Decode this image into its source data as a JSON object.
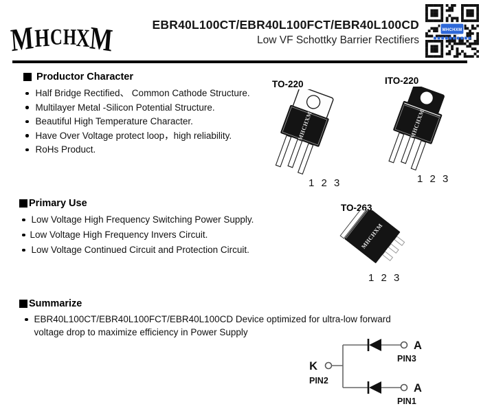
{
  "header": {
    "logo_letters": [
      "M",
      "H",
      "C",
      "H",
      "X",
      "M"
    ],
    "title": "EBR40L100CT/EBR40L100FCT/EBR40L100CD",
    "subtitle": "Low VF Schottky Barrier Rectifiers",
    "qr": {
      "badge_text": "MHCHXM"
    }
  },
  "sections": {
    "productor": {
      "title": "Productor Character",
      "bullets": [
        "Half Bridge Rectified、 Common Cathode Structure.",
        "Multilayer Metal -Silicon Potential Structure.",
        "Beautiful High Temperature Character.",
        "Have Over Voltage protect loop，high  reliability.",
        "RoHs Product."
      ]
    },
    "primary_use": {
      "title": "Primary Use",
      "bullets": [
        "Low Voltage High Frequency Switching Power Supply.",
        "Low Voltage High Frequency  Invers Circuit.",
        "Low Voltage Continued  Circuit and Protection Circuit."
      ]
    },
    "summarize": {
      "title": "Summarize",
      "bullets": [
        "EBR40L100CT/EBR40L100FCT/EBR40L100CD Device optimized for ultra-low forward voltage drop to maximize efficiency in Power Supply"
      ]
    }
  },
  "packages": {
    "to220": {
      "name": "TO-220",
      "pins": "1 2 3",
      "marking": "MHCHXM"
    },
    "ito220": {
      "name": "ITO-220",
      "pins": "1 2 3",
      "marking": "MHCHXM"
    },
    "to263": {
      "name": "TO-263",
      "pins": "1 2 3",
      "marking": "MHCHXM"
    }
  },
  "circuit": {
    "cathode_label": "K",
    "cathode_pin": "PIN2",
    "anode_top_label": "A",
    "anode_top_pin": "PIN3",
    "anode_bottom_label": "A",
    "anode_bottom_pin": "PIN1"
  },
  "colors": {
    "text": "#1a1a1a",
    "qr_badge_blue": "#2e68d8",
    "circuit_line": "#666666",
    "package_body": "#141414"
  }
}
